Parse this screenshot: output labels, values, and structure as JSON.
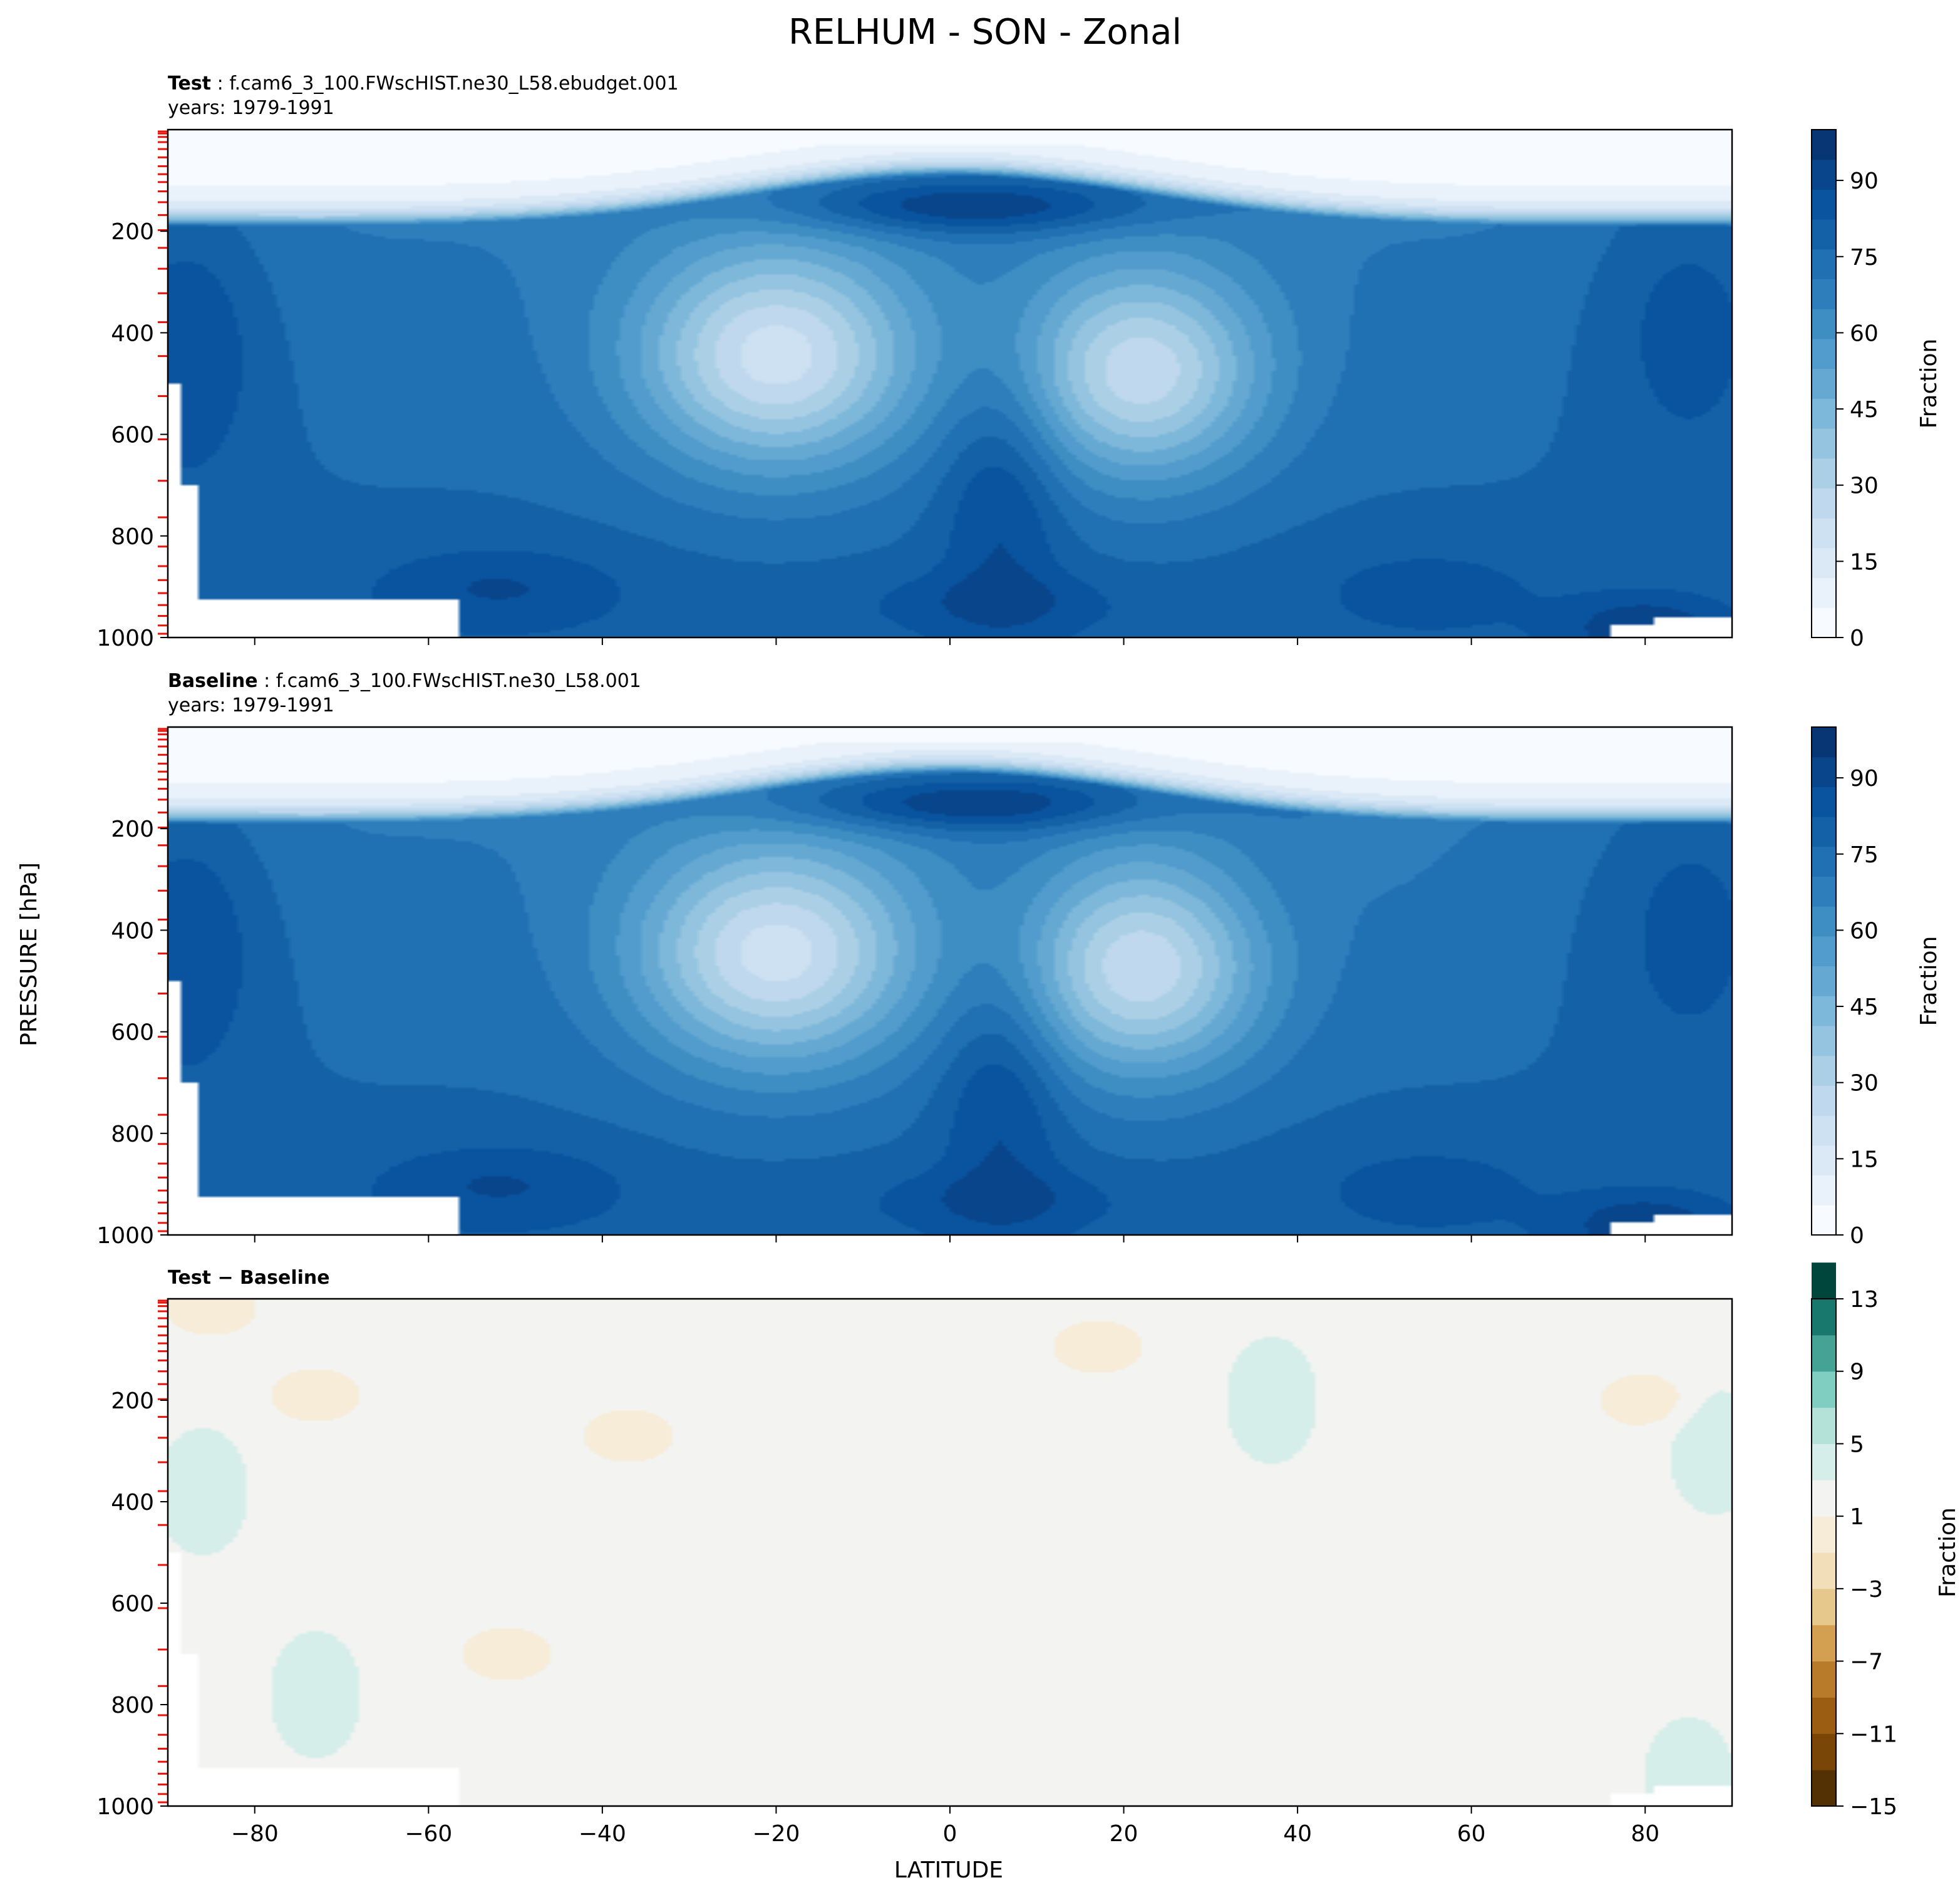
{
  "figure": {
    "title": "RELHUM - SON - Zonal",
    "shared_ylabel": "PRESSURE [hPa]",
    "shared_xlabel": "LATITUDE",
    "colors": {
      "blues": [
        "#f7fbff",
        "#e9f2fb",
        "#dbe9f6",
        "#cde1f2",
        "#bfd8ed",
        "#abd0e6",
        "#94c4df",
        "#7db7da",
        "#65a9d3",
        "#519ccc",
        "#3e8ec4",
        "#2f7ebc",
        "#2070b4",
        "#1461a8",
        "#0a539e",
        "#08458a",
        "#083674"
      ],
      "brbg_negative": [
        "#543005",
        "#7a4607",
        "#9a5d12",
        "#b87b2a",
        "#d2a050",
        "#e6c88c",
        "#f2dfba",
        "#f6ecd8"
      ],
      "brbg_positive": [
        "#d6eee9",
        "#b4e1d8",
        "#80cdc1",
        "#45a396",
        "#19786e",
        "#00463c"
      ],
      "brbg_neutral": [
        "#f3f4f2"
      ],
      "level_marker": "#e8140c"
    }
  },
  "chart_data": [
    {
      "type": "heatmap",
      "panel_label": "Test",
      "case_name": "f.cam6_3_100.FWscHIST.ne30_L58.ebudget.001",
      "years": "years: 1979-1991",
      "xlim": [
        -90,
        90
      ],
      "ylim": [
        1000,
        0
      ],
      "yticks": [
        200,
        400,
        600,
        800,
        1000
      ],
      "xticks": [
        -80,
        -60,
        -40,
        -20,
        0,
        20,
        40,
        60,
        80
      ],
      "colorbar": {
        "label": "Fraction",
        "ticks": [
          0,
          15,
          30,
          45,
          60,
          75,
          90
        ],
        "range": [
          0,
          100
        ],
        "cmap": "Blues"
      },
      "features": {
        "upper_dry_top_hpa": 90,
        "subtropical_minima": [
          {
            "lat": -20,
            "p": 450,
            "value": 20
          },
          {
            "lat": 22,
            "p": 480,
            "value": 25
          }
        ],
        "equatorial_tropopause_max": {
          "lat": 0,
          "p": 130,
          "value": 80
        },
        "polar_maxima": [
          {
            "lat": -88,
            "p": 400,
            "value": 88
          },
          {
            "lat": 85,
            "p": 350,
            "value": 88
          }
        ],
        "boundary_layer_maxima": [
          {
            "lat": -52,
            "p": 900,
            "value": 90
          },
          {
            "lat": 5,
            "p": 930,
            "value": 90
          },
          {
            "lat": 80,
            "p": 980,
            "value": 95
          }
        ]
      }
    },
    {
      "type": "heatmap",
      "panel_label": "Baseline",
      "case_name": "f.cam6_3_100.FWscHIST.ne30_L58.001",
      "years": "years: 1979-1991",
      "xlim": [
        -90,
        90
      ],
      "ylim": [
        1000,
        0
      ],
      "yticks": [
        200,
        400,
        600,
        800,
        1000
      ],
      "xticks": [
        -80,
        -60,
        -40,
        -20,
        0,
        20,
        40,
        60,
        80
      ],
      "colorbar": {
        "label": "Fraction",
        "ticks": [
          0,
          15,
          30,
          45,
          60,
          75,
          90
        ],
        "range": [
          0,
          100
        ],
        "cmap": "Blues"
      },
      "features": {
        "upper_dry_top_hpa": 90,
        "subtropical_minima": [
          {
            "lat": -20,
            "p": 450,
            "value": 20
          },
          {
            "lat": 22,
            "p": 480,
            "value": 25
          }
        ],
        "equatorial_tropopause_max": {
          "lat": 0,
          "p": 130,
          "value": 80
        },
        "polar_maxima": [
          {
            "lat": -88,
            "p": 400,
            "value": 88
          },
          {
            "lat": 85,
            "p": 350,
            "value": 88
          }
        ],
        "boundary_layer_maxima": [
          {
            "lat": -52,
            "p": 900,
            "value": 90
          },
          {
            "lat": 5,
            "p": 930,
            "value": 90
          },
          {
            "lat": 80,
            "p": 980,
            "value": 95
          }
        ]
      }
    },
    {
      "type": "heatmap",
      "panel_label": "Test − Baseline",
      "xlim": [
        -90,
        90
      ],
      "ylim": [
        1000,
        0
      ],
      "yticks": [
        200,
        400,
        600,
        800,
        1000
      ],
      "xticks": [
        -80,
        -60,
        -40,
        -20,
        0,
        20,
        40,
        60,
        80
      ],
      "colorbar": {
        "label": "Fraction",
        "ticks": [
          -15,
          -11,
          -7,
          -3,
          1,
          5,
          9,
          13
        ],
        "range": [
          -15,
          13
        ],
        "cmap": "BrBG"
      },
      "features": {
        "positive_regions": [
          {
            "lat": -86,
            "p": 380,
            "value": 2
          },
          {
            "lat": -73,
            "p": 780,
            "value": 2
          },
          {
            "lat": 37,
            "p": 200,
            "value": 2
          },
          {
            "lat": 88,
            "p": 300,
            "value": 2
          },
          {
            "lat": 85,
            "p": 950,
            "value": 2
          }
        ],
        "negative_regions": [
          {
            "lat": -85,
            "p": 20,
            "value": -2
          },
          {
            "lat": -73,
            "p": 190,
            "value": -2
          },
          {
            "lat": -37,
            "p": 270,
            "value": -2
          },
          {
            "lat": -51,
            "p": 700,
            "value": -2
          },
          {
            "lat": 17,
            "p": 95,
            "value": -2
          },
          {
            "lat": 80,
            "p": 200,
            "value": -2
          }
        ]
      }
    }
  ],
  "pressure_levels_hpa": [
    3.6,
    7.6,
    14.4,
    24.6,
    38.3,
    54.6,
    72.0,
    87.8,
    103.3,
    121.5,
    142.9,
    168.2,
    197.9,
    232.8,
    273.9,
    322.2,
    379.1,
    445.9,
    524.7,
    609.8,
    691.4,
    763.4,
    820.9,
    859.5,
    887.0,
    912.6,
    936.2,
    957.5,
    976.3,
    992.6
  ]
}
